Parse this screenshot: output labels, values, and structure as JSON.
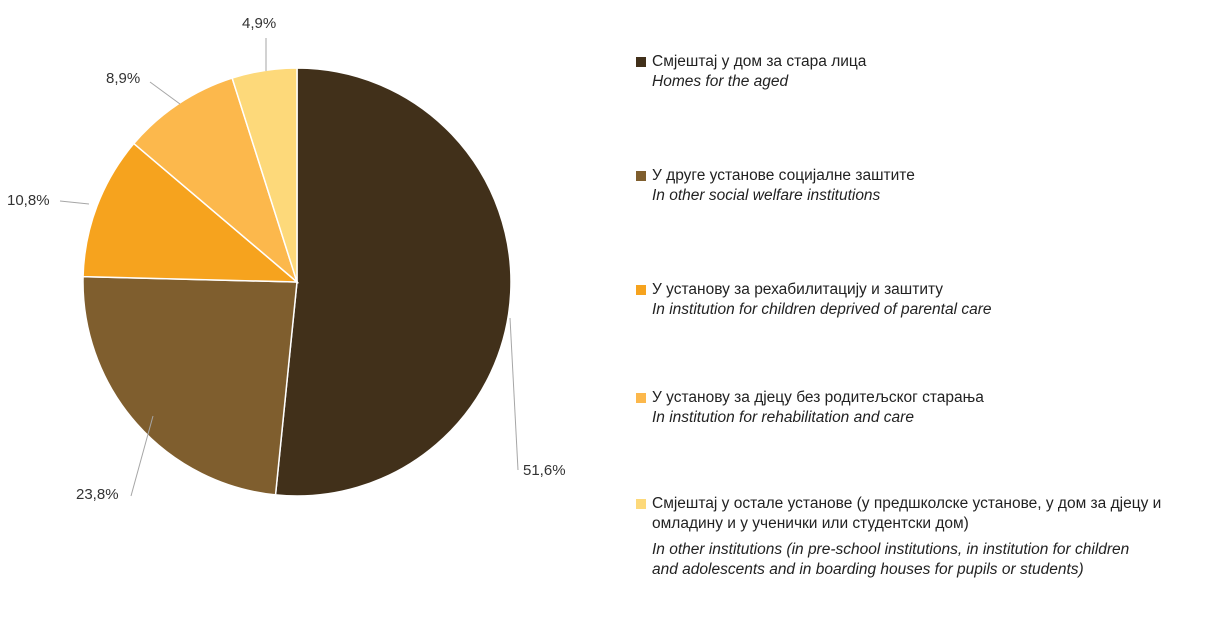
{
  "chart_data": {
    "type": "pie",
    "slices": [
      {
        "value": 51.6,
        "label": "51,6%",
        "color": "#41301a"
      },
      {
        "value": 23.8,
        "label": "23,8%",
        "color": "#7f5e2e"
      },
      {
        "value": 10.8,
        "label": "10,8%",
        "color": "#f6a31e"
      },
      {
        "value": 8.9,
        "label": "8,9%",
        "color": "#fcb84c"
      },
      {
        "value": 4.9,
        "label": "4,9%",
        "color": "#fdd97a"
      }
    ],
    "start_angle_deg": 0,
    "direction": "clockwise",
    "legend_position": "right",
    "legend": [
      {
        "label": "Смјештај у дом за стара лица",
        "label_en": "Homes for the aged",
        "color": "#41301a"
      },
      {
        "label": "У друге установе социјалне заштите",
        "label_en": "In other social welfare institutions",
        "color": "#7f5e2e"
      },
      {
        "label": "У установу за рехабилитацију и заштиту",
        "label_en": "In institution for children deprived of parental care",
        "color": "#f6a31e"
      },
      {
        "label": "У установу за дјецу без родитељског старања",
        "label_en": "In institution for rehabilitation and care",
        "color": "#fcb84c"
      },
      {
        "label": "Смјештај у остале установе (у предшколске установе, у дом за дјецу и омладину и у ученички или студентски дом)",
        "label_en": "In other institutions (in pre-school institutions, in institution for children and adolescents and in boarding houses for pupils or students)",
        "color": "#fdd97a"
      }
    ]
  }
}
